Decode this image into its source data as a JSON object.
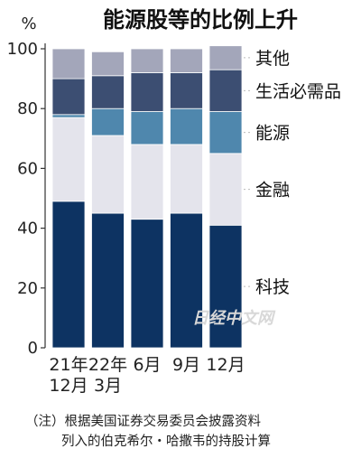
{
  "chart_data": {
    "type": "bar",
    "stacked": true,
    "title": "能源股等的比例上升",
    "unit_label": "%",
    "ylim": [
      0,
      100
    ],
    "yticks": [
      0,
      20,
      40,
      60,
      80,
      100
    ],
    "grid": false,
    "legend_position": "right",
    "categories": [
      [
        "21年",
        "12月"
      ],
      [
        "22年",
        "3月"
      ],
      [
        "6月"
      ],
      [
        "9月"
      ],
      [
        "12月"
      ]
    ],
    "series": [
      {
        "name": "科技",
        "color": "#0d3362",
        "values": [
          49,
          45,
          43,
          45,
          41
        ]
      },
      {
        "name": "金融",
        "color": "#e4e4ec",
        "values": [
          28,
          26,
          25,
          23,
          24
        ]
      },
      {
        "name": "能源",
        "color": "#4f87ad",
        "values": [
          1,
          9,
          11,
          12,
          14
        ]
      },
      {
        "name": "生活必需品",
        "color": "#3c4e72",
        "values": [
          12,
          11,
          13,
          12,
          14
        ]
      },
      {
        "name": "其他",
        "color": "#a3a6ba",
        "values": [
          10,
          8,
          8,
          8,
          8
        ]
      }
    ],
    "watermark": "日经中文网",
    "note": [
      "（注）根据美国证券交易委员会披露资料",
      "列入的伯克希尔・哈撒韦的持股计算"
    ]
  }
}
